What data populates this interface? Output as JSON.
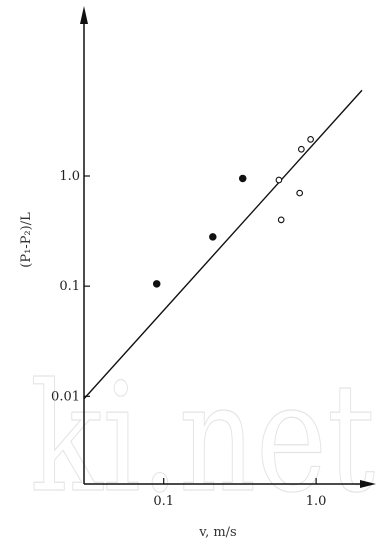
{
  "chart_data": {
    "type": "scatter",
    "xscale": "log",
    "yscale": "log",
    "xlabel": "v,  m/s",
    "ylabel": "(P₁-P₂)/L",
    "xticks": [
      {
        "value": 0.1,
        "label": "0.1"
      },
      {
        "value": 1.0,
        "label": "1.0"
      }
    ],
    "yticks": [
      {
        "value": 0.01,
        "label": "0.01"
      },
      {
        "value": 0.1,
        "label": "0.1"
      },
      {
        "value": 1.0,
        "label": "1.0"
      }
    ],
    "xlim": [
      0.03,
      2.0
    ],
    "ylim": [
      0.0016,
      25
    ],
    "grid": false,
    "series": [
      {
        "marker": "filled",
        "points": [
          [
            0.09,
            0.105
          ],
          [
            0.21,
            0.28
          ],
          [
            0.33,
            0.95
          ]
        ]
      },
      {
        "marker": "open",
        "points": [
          [
            0.57,
            0.92
          ],
          [
            0.59,
            0.4
          ],
          [
            0.78,
            0.7
          ],
          [
            0.8,
            1.75
          ],
          [
            0.92,
            2.15
          ]
        ]
      }
    ],
    "fit_line": {
      "x": [
        0.03,
        2.0
      ],
      "y": [
        0.0095,
        6.0
      ]
    }
  },
  "watermark": "ki.net"
}
